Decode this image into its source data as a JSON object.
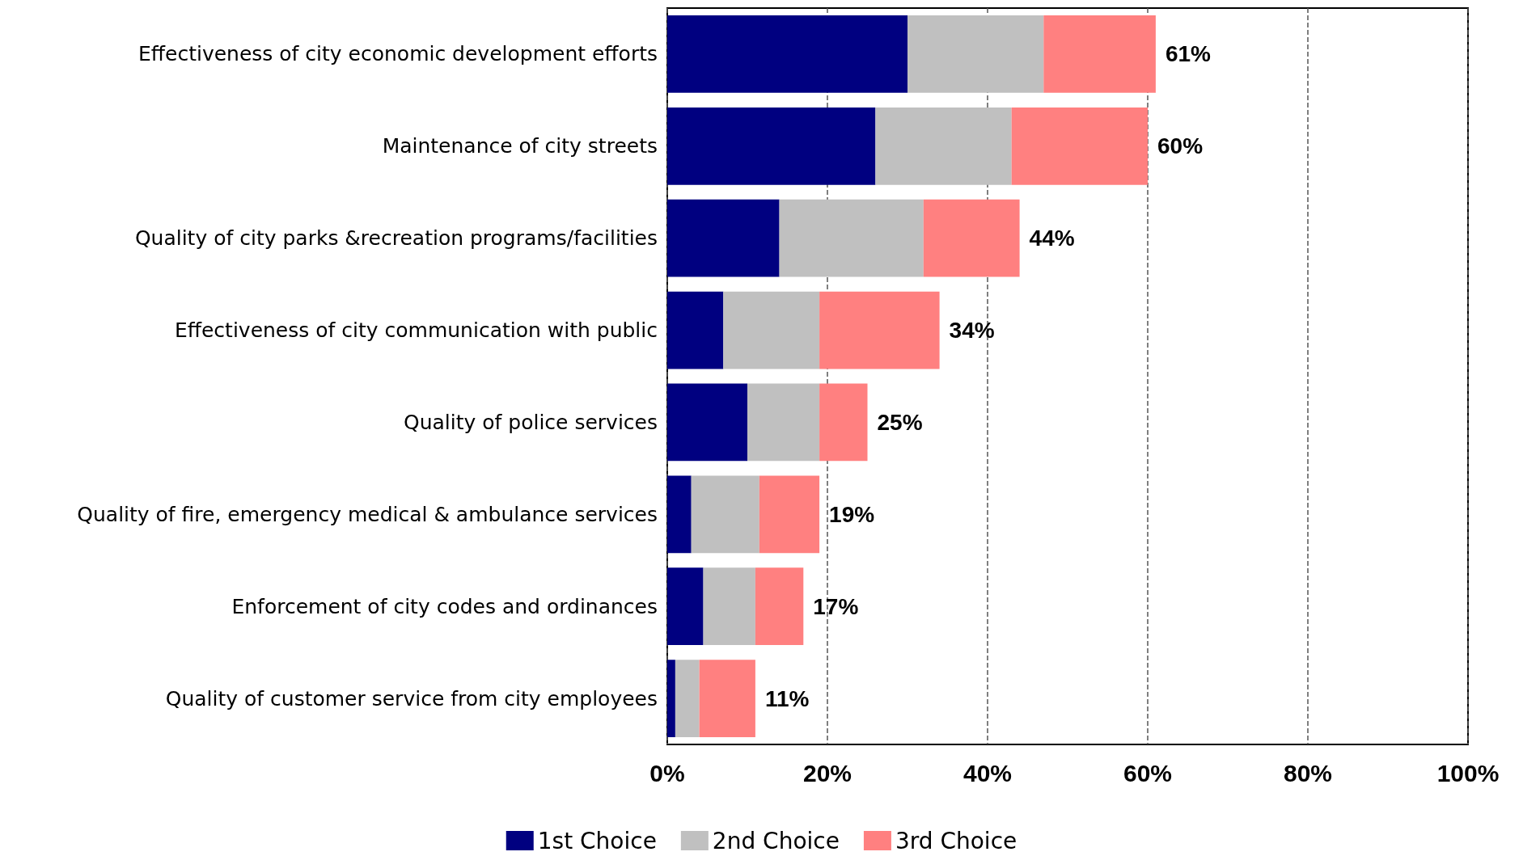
{
  "chart_data": {
    "type": "bar",
    "orientation": "horizontal",
    "stacked": true,
    "categories": [
      "Effectiveness of city economic development efforts",
      "Maintenance of city streets",
      "Quality of city parks &recreation programs/facilities",
      "Effectiveness of city communication with public",
      "Quality of police services",
      "Quality of fire, emergency medical & ambulance services",
      "Enforcement of city codes and ordinances",
      "Quality of customer service from city employees"
    ],
    "series": [
      {
        "name": "1st Choice",
        "color": "#000080",
        "values": [
          30,
          26,
          14,
          7,
          10,
          3,
          4.5,
          1
        ]
      },
      {
        "name": "2nd Choice",
        "color": "#c0c0c0",
        "values": [
          17,
          17,
          18,
          12,
          9,
          8.5,
          6.5,
          3
        ]
      },
      {
        "name": "3rd Choice",
        "color": "#ff8080",
        "values": [
          14,
          17,
          12,
          15,
          6,
          7.5,
          6,
          7
        ]
      }
    ],
    "totals": [
      "61%",
      "60%",
      "44%",
      "34%",
      "25%",
      "19%",
      "17%",
      "11%"
    ],
    "xlim": [
      0,
      100
    ],
    "xticks": [
      {
        "value": 0,
        "label": "0%"
      },
      {
        "value": 20,
        "label": "20%"
      },
      {
        "value": 40,
        "label": "40%"
      },
      {
        "value": 60,
        "label": "60%"
      },
      {
        "value": 80,
        "label": "80%"
      },
      {
        "value": 100,
        "label": "100%"
      }
    ],
    "grid": "x",
    "legend": "bottom"
  }
}
